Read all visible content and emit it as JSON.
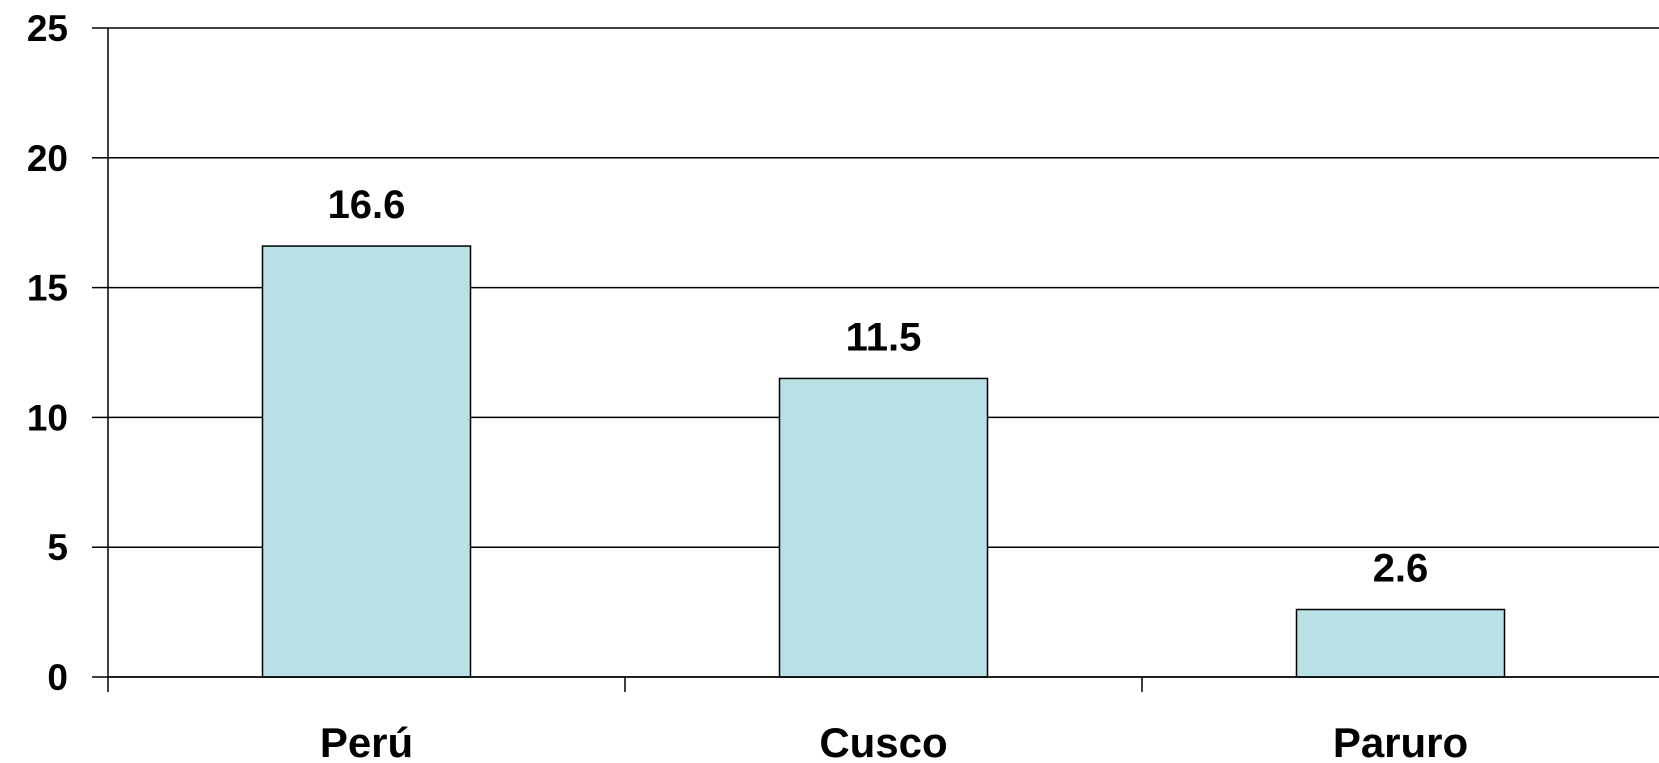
{
  "chart_data": {
    "type": "bar",
    "categories": [
      "Perú",
      "Cusco",
      "Paruro"
    ],
    "values": [
      16.6,
      11.5,
      2.6
    ],
    "value_labels": [
      "16.6",
      "11.5",
      "2.6"
    ],
    "y_ticks": [
      0,
      5,
      10,
      15,
      20,
      25
    ],
    "y_tick_labels": [
      "0",
      "5",
      "10",
      "15",
      "20",
      "25"
    ],
    "ylim": [
      0,
      25
    ],
    "grid": true,
    "legend": "none",
    "colors": {
      "bar_fill": "#b9e0e4",
      "bar_stroke": "#000000",
      "grid": "#000000",
      "text": "#000000"
    }
  }
}
